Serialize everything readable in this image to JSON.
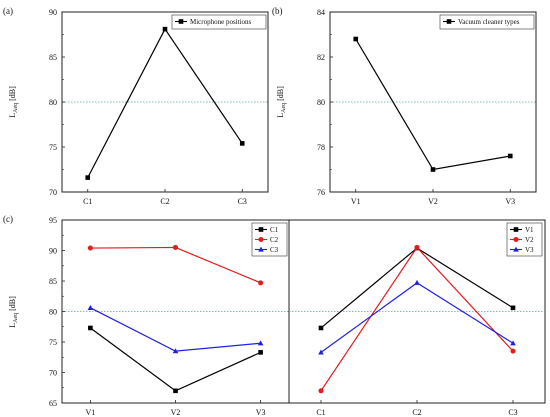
{
  "chart_data": [
    {
      "panel_label": "(a)",
      "type": "line",
      "ylabel": "L",
      "ylabel_sub": "Aeq",
      "ylabel_unit": " [dB]",
      "categories": [
        "C1",
        "C2",
        "C3"
      ],
      "ylim": [
        70,
        90
      ],
      "yticks": [
        "70",
        "75",
        "80",
        "85",
        "90"
      ],
      "reference_line": 80,
      "legend_position": "top-right",
      "series": [
        {
          "name": "Microphone positions",
          "color": "#000000",
          "marker": "square",
          "values": [
            71.6,
            88.1,
            75.4
          ]
        }
      ]
    },
    {
      "panel_label": "(b)",
      "type": "line",
      "ylabel": "L",
      "ylabel_sub": "Aeq",
      "ylabel_unit": " [dB]",
      "categories": [
        "V1",
        "V2",
        "V3"
      ],
      "ylim": [
        76,
        84
      ],
      "yticks": [
        "76",
        "78",
        "80",
        "82",
        "84"
      ],
      "reference_line": 80,
      "legend_position": "top-right",
      "series": [
        {
          "name": "Vacuum cleaner types",
          "color": "#000000",
          "marker": "square",
          "values": [
            82.8,
            77.0,
            77.6
          ]
        }
      ]
    },
    {
      "panel_label": "(c)",
      "type": "line",
      "ylabel": "L",
      "ylabel_sub": "Aeq",
      "ylabel_unit": " [dB]",
      "categories": [
        "V1",
        "V2",
        "V3"
      ],
      "ylim": [
        65,
        95
      ],
      "yticks": [
        "65",
        "70",
        "75",
        "80",
        "85",
        "90",
        "95"
      ],
      "reference_line": 80,
      "legend_position": "top-right",
      "series": [
        {
          "name": "C1",
          "color": "#000000",
          "marker": "square",
          "values": [
            77.3,
            67.0,
            73.3
          ]
        },
        {
          "name": "C2",
          "color": "#e41a1c",
          "marker": "circle",
          "values": [
            90.4,
            90.5,
            84.7
          ]
        },
        {
          "name": "C3",
          "color": "#1f1fe8",
          "marker": "triangle",
          "values": [
            80.6,
            73.5,
            74.8
          ]
        }
      ]
    },
    {
      "panel_label": "",
      "type": "line",
      "categories": [
        "C1",
        "C2",
        "C3"
      ],
      "ylim": [
        65,
        95
      ],
      "reference_line": 80,
      "legend_position": "top-right",
      "series": [
        {
          "name": "V1",
          "color": "#000000",
          "marker": "square",
          "values": [
            77.3,
            90.4,
            80.6
          ]
        },
        {
          "name": "V2",
          "color": "#e41a1c",
          "marker": "circle",
          "values": [
            67.0,
            90.5,
            73.5
          ]
        },
        {
          "name": "V3",
          "color": "#1f1fe8",
          "marker": "triangle",
          "values": [
            73.3,
            84.7,
            74.8
          ]
        }
      ]
    }
  ]
}
